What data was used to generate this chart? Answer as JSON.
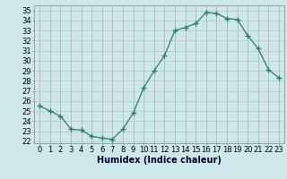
{
  "x": [
    0,
    1,
    2,
    3,
    4,
    5,
    6,
    7,
    8,
    9,
    10,
    11,
    12,
    13,
    14,
    15,
    16,
    17,
    18,
    19,
    20,
    21,
    22,
    23
  ],
  "y": [
    25.5,
    25.0,
    24.5,
    23.2,
    23.1,
    22.5,
    22.3,
    22.2,
    23.2,
    24.8,
    27.3,
    29.0,
    30.5,
    33.0,
    33.3,
    33.7,
    34.8,
    34.7,
    34.2,
    34.1,
    32.5,
    31.2,
    29.1,
    28.3
  ],
  "line_color": "#2e7d6e",
  "marker": "+",
  "marker_size": 4,
  "marker_lw": 1.0,
  "line_width": 0.9,
  "bg_color": "#cce8e8",
  "grid_color": "#b0d8d8",
  "xlabel": "Humidex (Indice chaleur)",
  "xlim": [
    -0.5,
    23.5
  ],
  "ylim": [
    21.8,
    35.5
  ],
  "yticks": [
    22,
    23,
    24,
    25,
    26,
    27,
    28,
    29,
    30,
    31,
    32,
    33,
    34,
    35
  ],
  "xticks": [
    0,
    1,
    2,
    3,
    4,
    5,
    6,
    7,
    8,
    9,
    10,
    11,
    12,
    13,
    14,
    15,
    16,
    17,
    18,
    19,
    20,
    21,
    22,
    23
  ],
  "tick_fontsize": 6,
  "xlabel_fontsize": 7
}
